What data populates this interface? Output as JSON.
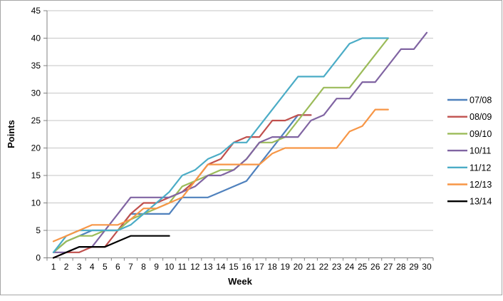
{
  "chart_data": {
    "type": "line",
    "title": "",
    "xlabel": "Week",
    "ylabel": "Points",
    "x": [
      1,
      2,
      3,
      4,
      5,
      6,
      7,
      8,
      9,
      10,
      11,
      12,
      13,
      14,
      15,
      16,
      17,
      18,
      19,
      20,
      21,
      22,
      23,
      24,
      25,
      26,
      27,
      28,
      29,
      30
    ],
    "ylim": [
      0,
      45
    ],
    "ytick_step": 5,
    "grid": true,
    "legend_position": "right",
    "series": [
      {
        "name": "07/08",
        "color": "#4F81BD",
        "values": [
          1,
          3,
          4,
          5,
          5,
          5,
          8,
          8,
          8,
          8,
          11,
          11,
          11,
          12,
          13,
          14,
          17,
          20,
          23,
          26,
          26
        ]
      },
      {
        "name": "08/09",
        "color": "#C0504D",
        "values": [
          0,
          1,
          1,
          2,
          2,
          5,
          8,
          10,
          10,
          11,
          12,
          14,
          17,
          18,
          21,
          22,
          22,
          25,
          25,
          26,
          26
        ]
      },
      {
        "name": "09/10",
        "color": "#9BBB59",
        "values": [
          1,
          3,
          4,
          4,
          5,
          5,
          7,
          8,
          9,
          10,
          13,
          14,
          15,
          16,
          16,
          18,
          21,
          21,
          22,
          25,
          28,
          31,
          31,
          31,
          34,
          37,
          40
        ]
      },
      {
        "name": "10/11",
        "color": "#8064A2",
        "values": [
          1,
          1,
          2,
          2,
          5,
          8,
          11,
          11,
          11,
          11,
          12,
          13,
          15,
          15,
          16,
          18,
          21,
          22,
          22,
          22,
          25,
          26,
          29,
          29,
          32,
          32,
          35,
          38,
          38,
          41
        ]
      },
      {
        "name": "11/12",
        "color": "#4BACC6",
        "values": [
          1,
          4,
          5,
          5,
          5,
          5,
          6,
          8,
          10,
          12,
          15,
          16,
          18,
          19,
          21,
          21,
          24,
          27,
          30,
          33,
          33,
          33,
          36,
          39,
          40,
          40,
          40
        ]
      },
      {
        "name": "12/13",
        "color": "#F79646",
        "values": [
          3,
          4,
          5,
          6,
          6,
          6,
          7,
          9,
          9,
          10,
          11,
          14,
          17,
          17,
          17,
          17,
          17,
          19,
          20,
          20,
          20,
          20,
          20,
          23,
          24,
          27,
          27
        ]
      },
      {
        "name": "13/14",
        "color": "#000000",
        "values": [
          0,
          1,
          2,
          2,
          2,
          3,
          4,
          4,
          4,
          4
        ]
      }
    ],
    "colors": {
      "axis": "#808080",
      "gridline": "#C6C6C6",
      "tick_label": "#000000",
      "axis_title": "#000000",
      "chart_border": "#A6A6A6",
      "background": "#FFFFFF"
    }
  }
}
